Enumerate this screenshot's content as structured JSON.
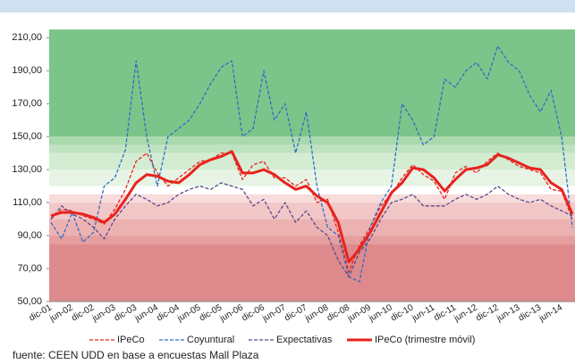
{
  "chart_data": {
    "type": "line",
    "categories": [
      "dic-01",
      null,
      "jun-02",
      null,
      "dic-02",
      null,
      "jun-03",
      null,
      "dic-03",
      null,
      "jun-04",
      null,
      "dic-04",
      null,
      "jun-05",
      null,
      "dic-05",
      null,
      "jun-06",
      null,
      "dic-06",
      null,
      "jun-07",
      null,
      "dic-07",
      null,
      "jun-08",
      null,
      "dic-08",
      null,
      "jun-09",
      null,
      "jun-10",
      null,
      "dic-10",
      null,
      "jun-11",
      null,
      "dic-11",
      null,
      "jun-12",
      null,
      "dic-12",
      null,
      "jun-13",
      null,
      "dic-13",
      null,
      "jun-14",
      null
    ],
    "series": [
      {
        "name": "IPeCo",
        "color": "#e8231e",
        "dash": true,
        "width": 1.3,
        "values": [
          100,
          106,
          105,
          102,
          100,
          97,
          106,
          118,
          135,
          140,
          128,
          120,
          125,
          130,
          135,
          136,
          140,
          140,
          124,
          133,
          135,
          125,
          125,
          120,
          124,
          110,
          112,
          92,
          68,
          84,
          95,
          108,
          115,
          125,
          133,
          127,
          123,
          112,
          128,
          132,
          128,
          135,
          140,
          136,
          132,
          130,
          128,
          118,
          117,
          100
        ]
      },
      {
        "name": "Coyuntural",
        "color": "#2f6fc4",
        "dash": true,
        "width": 1.3,
        "values": [
          98,
          88,
          104,
          86,
          92,
          120,
          125,
          142,
          196,
          150,
          120,
          150,
          155,
          160,
          170,
          182,
          192,
          196,
          150,
          155,
          190,
          160,
          170,
          140,
          165,
          120,
          95,
          90,
          65,
          62,
          95,
          110,
          120,
          170,
          160,
          145,
          150,
          185,
          180,
          190,
          195,
          185,
          205,
          195,
          190,
          175,
          165,
          178,
          150,
          95
        ]
      },
      {
        "name": "Expectativas",
        "color": "#5a4a8a",
        "dash": true,
        "width": 1.3,
        "values": [
          100,
          108,
          103,
          100,
          95,
          88,
          100,
          108,
          115,
          112,
          108,
          110,
          115,
          118,
          120,
          118,
          122,
          120,
          118,
          108,
          112,
          100,
          110,
          98,
          105,
          95,
          90,
          75,
          65,
          80,
          88,
          100,
          110,
          112,
          115,
          108,
          108,
          108,
          112,
          115,
          112,
          115,
          120,
          115,
          112,
          110,
          112,
          108,
          105,
          102
        ]
      },
      {
        "name": "IPeCo (trimestre móvil)",
        "color": "#e8231e",
        "dash": false,
        "width": 3,
        "values": [
          102,
          104,
          104,
          103,
          101,
          98,
          103,
          112,
          122,
          127,
          126,
          123,
          122,
          127,
          133,
          136,
          138,
          141,
          128,
          128,
          130,
          127,
          122,
          118,
          120,
          114,
          110,
          98,
          74,
          82,
          92,
          104,
          116,
          122,
          131,
          130,
          125,
          117,
          124,
          130,
          131,
          133,
          139,
          137,
          134,
          131,
          130,
          122,
          118,
          103
        ]
      }
    ],
    "ylim": [
      50,
      215
    ],
    "yticks": [
      {
        "value": 50,
        "label": "50,00"
      },
      {
        "value": 70,
        "label": "70,00"
      },
      {
        "value": 90,
        "label": "90,00"
      },
      {
        "value": 110,
        "label": "110,00"
      },
      {
        "value": 130,
        "label": "130,00"
      },
      {
        "value": 150,
        "label": "150,00"
      },
      {
        "value": 170,
        "label": "170,00"
      },
      {
        "value": 190,
        "label": "190,00"
      },
      {
        "value": 210,
        "label": "210,00"
      }
    ],
    "bands": [
      {
        "from": 150,
        "to": 215,
        "color": "#7cc58a"
      },
      {
        "from": 145,
        "to": 150,
        "color": "#a9d9ad"
      },
      {
        "from": 140,
        "to": 145,
        "color": "#bfe3c0"
      },
      {
        "from": 130,
        "to": 140,
        "color": "#d3ecd2"
      },
      {
        "from": 120,
        "to": 130,
        "color": "#e7f4e5"
      },
      {
        "from": 115,
        "to": 120,
        "color": "#ffffff"
      },
      {
        "from": 110,
        "to": 115,
        "color": "#f8dcdc"
      },
      {
        "from": 100,
        "to": 110,
        "color": "#f2c7c7"
      },
      {
        "from": 90,
        "to": 100,
        "color": "#ecb2b2"
      },
      {
        "from": 85,
        "to": 90,
        "color": "#e69f9f"
      },
      {
        "from": 50,
        "to": 85,
        "color": "#de8a8d"
      }
    ],
    "source": "fuente: CEEN UDD en base a encuestas Mall Plaza"
  }
}
